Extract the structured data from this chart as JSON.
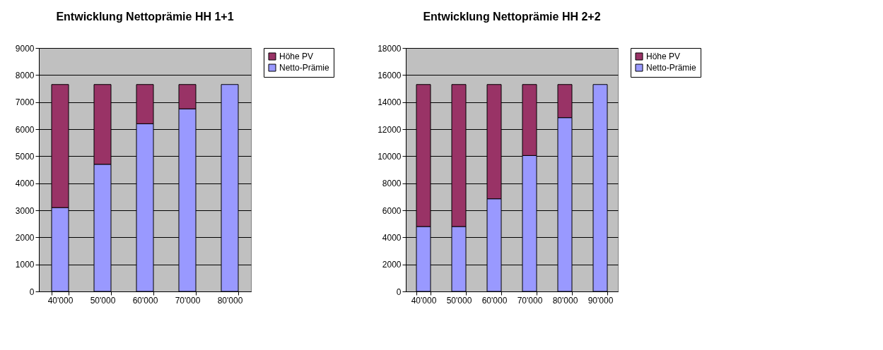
{
  "chart_data": [
    {
      "type": "bar",
      "title": "Entwicklung Nettoprämie HH 1+1",
      "categories": [
        "40'000",
        "50'000",
        "60'000",
        "70'000",
        "80'000"
      ],
      "stacked": true,
      "ylim": [
        0,
        9000
      ],
      "yticks": [
        0,
        1000,
        2000,
        3000,
        4000,
        5000,
        6000,
        7000,
        8000,
        9000
      ],
      "grid": "y",
      "legend": "right",
      "series": [
        {
          "name": "Netto-Prämie",
          "color": "#9999ff",
          "values": [
            3100,
            4700,
            6200,
            6750,
            7650
          ]
        },
        {
          "name": "Höhe PV",
          "color": "#993366",
          "values": [
            4550,
            2950,
            1450,
            900,
            0
          ]
        }
      ]
    },
    {
      "type": "bar",
      "title": "Entwicklung Nettoprämie HH 2+2",
      "categories": [
        "40'000",
        "50'000",
        "60'000",
        "70'000",
        "80'000",
        "90'000"
      ],
      "stacked": true,
      "ylim": [
        0,
        18000
      ],
      "yticks": [
        0,
        2000,
        4000,
        6000,
        8000,
        10000,
        12000,
        14000,
        16000,
        18000
      ],
      "grid": "y",
      "legend": "right",
      "series": [
        {
          "name": "Netto-Prämie",
          "color": "#9999ff",
          "values": [
            4800,
            4800,
            6850,
            10050,
            12850,
            15300
          ]
        },
        {
          "name": "Höhe PV",
          "color": "#993366",
          "values": [
            10500,
            10500,
            8450,
            5250,
            2450,
            0
          ]
        }
      ]
    }
  ]
}
